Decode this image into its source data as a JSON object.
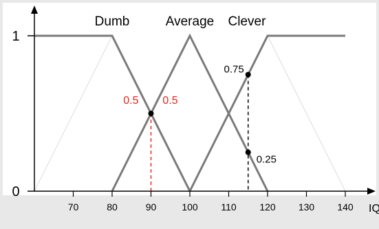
{
  "chart_data": {
    "type": "line",
    "title": "",
    "xlabel": "IQ",
    "ylabel": "",
    "xlim": [
      60,
      142
    ],
    "ylim": [
      0,
      1
    ],
    "x_ticks": [
      70,
      80,
      90,
      100,
      110,
      120,
      130,
      140
    ],
    "y_ticks": [
      0,
      1
    ],
    "grid": false,
    "series": [
      {
        "name": "Dumb",
        "x": [
          60,
          80,
          100
        ],
        "y": [
          1,
          1,
          0
        ]
      },
      {
        "name": "Average",
        "x": [
          80,
          100,
          120
        ],
        "y": [
          0,
          1,
          0
        ]
      },
      {
        "name": "Clever",
        "x": [
          100,
          120,
          140
        ],
        "y": [
          0,
          1,
          1
        ]
      }
    ],
    "markers": [
      {
        "x": 115,
        "y": 0.75,
        "label": "0.75"
      },
      {
        "x": 115,
        "y": 0.25,
        "label": "0.25"
      }
    ],
    "annotations": [
      {
        "x": 90,
        "y": 0.5,
        "label_left": "0.5",
        "label_right": "0.5",
        "color": "#e8251d"
      }
    ],
    "dashed_lines": [
      {
        "x": 90,
        "y_top": 0.5,
        "color": "#e8251d"
      },
      {
        "x": 115,
        "y_top": 0.75,
        "color": "#000000"
      }
    ],
    "colors": {
      "background": "#e8e8e8",
      "plot_bg": "#ffffff",
      "series_line": "#7a7a7a",
      "axis": "#000000",
      "highlight": "#e8251d",
      "faint_line": "#dcdcdc"
    }
  }
}
